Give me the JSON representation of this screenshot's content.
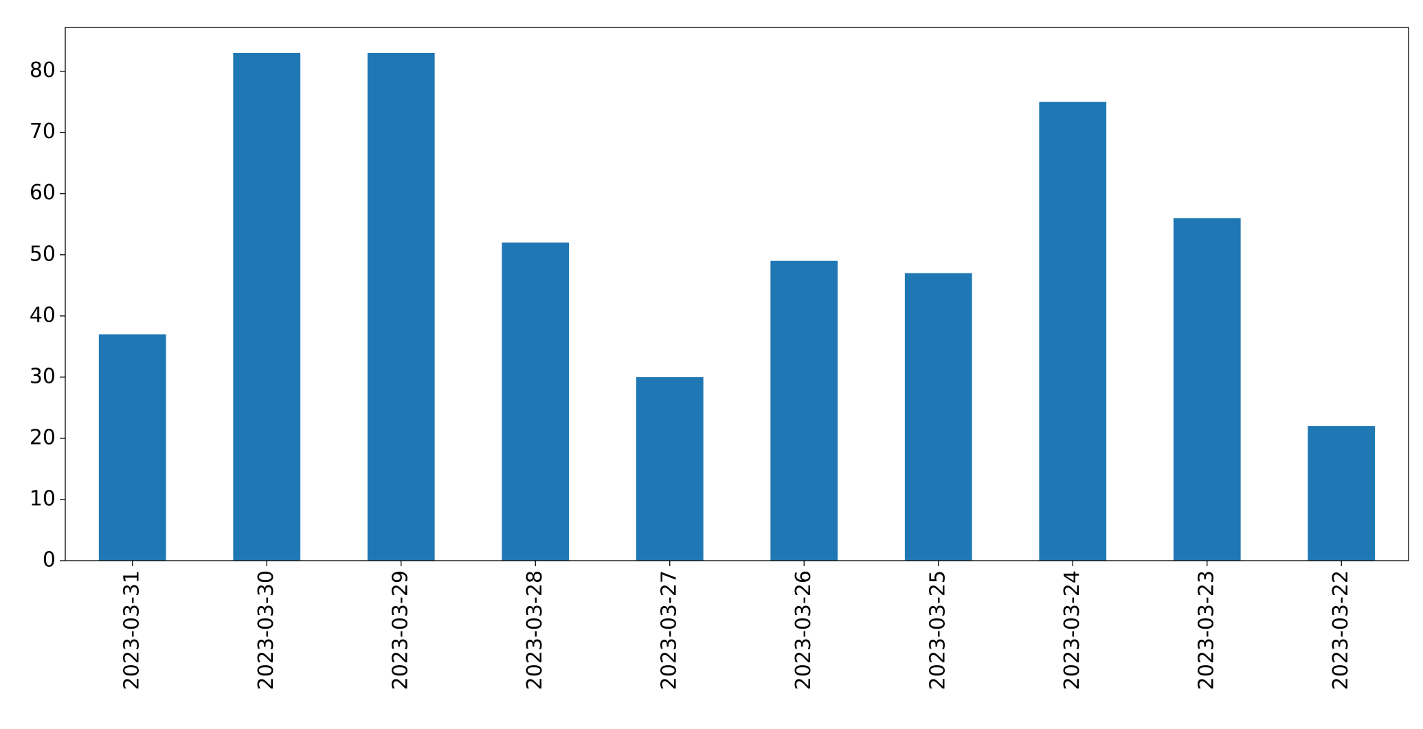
{
  "chart_data": {
    "type": "bar",
    "categories": [
      "2023-03-31",
      "2023-03-30",
      "2023-03-29",
      "2023-03-28",
      "2023-03-27",
      "2023-03-26",
      "2023-03-25",
      "2023-03-24",
      "2023-03-23",
      "2023-03-22"
    ],
    "values": [
      37,
      83,
      83,
      52,
      30,
      49,
      47,
      75,
      56,
      22
    ],
    "color": "#1f77b4",
    "ylim": [
      0,
      87.15
    ],
    "yticks": [
      0,
      10,
      20,
      30,
      40,
      50,
      60,
      70,
      80
    ],
    "grid": false
  }
}
